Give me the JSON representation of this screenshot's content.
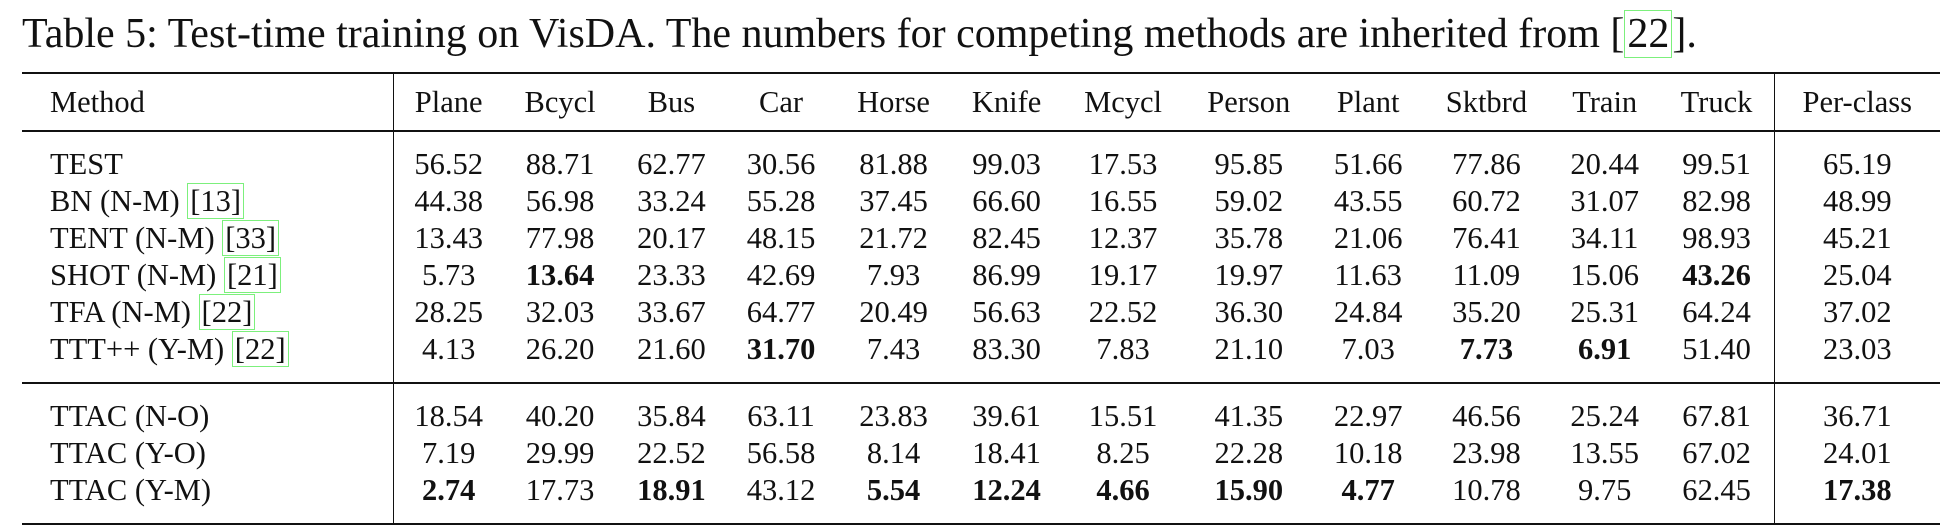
{
  "caption": {
    "text_before": "Table 5: Test-time training on VisDA. The numbers for competing methods are inherited from [",
    "ref": "22",
    "text_after": "]."
  },
  "table": {
    "columns": [
      "Method",
      "Plane",
      "Bcycl",
      "Bus",
      "Car",
      "Horse",
      "Knife",
      "Mcycl",
      "Person",
      "Plant",
      "Sktbrd",
      "Train",
      "Truck",
      "Per-class"
    ],
    "groups": [
      [
        {
          "method": "TEST",
          "cite": "",
          "values": [
            "56.52",
            "88.71",
            "62.77",
            "30.56",
            "81.88",
            "99.03",
            "17.53",
            "95.85",
            "51.66",
            "77.86",
            "20.44",
            "99.51",
            "65.19"
          ],
          "bold": []
        },
        {
          "method": "BN (N-M) ",
          "cite": "[13]",
          "values": [
            "44.38",
            "56.98",
            "33.24",
            "55.28",
            "37.45",
            "66.60",
            "16.55",
            "59.02",
            "43.55",
            "60.72",
            "31.07",
            "82.98",
            "48.99"
          ],
          "bold": []
        },
        {
          "method": "TENT (N-M) ",
          "cite": "[33]",
          "values": [
            "13.43",
            "77.98",
            "20.17",
            "48.15",
            "21.72",
            "82.45",
            "12.37",
            "35.78",
            "21.06",
            "76.41",
            "34.11",
            "98.93",
            "45.21"
          ],
          "bold": []
        },
        {
          "method": "SHOT (N-M) ",
          "cite": "[21]",
          "values": [
            "5.73",
            "13.64",
            "23.33",
            "42.69",
            "7.93",
            "86.99",
            "19.17",
            "19.97",
            "11.63",
            "11.09",
            "15.06",
            "43.26",
            "25.04"
          ],
          "bold": [
            1,
            11
          ]
        },
        {
          "method": "TFA (N-M) ",
          "cite": "[22]",
          "values": [
            "28.25",
            "32.03",
            "33.67",
            "64.77",
            "20.49",
            "56.63",
            "22.52",
            "36.30",
            "24.84",
            "35.20",
            "25.31",
            "64.24",
            "37.02"
          ],
          "bold": []
        },
        {
          "method": "TTT++ (Y-M) ",
          "cite": "[22]",
          "values": [
            "4.13",
            "26.20",
            "21.60",
            "31.70",
            "7.43",
            "83.30",
            "7.83",
            "21.10",
            "7.03",
            "7.73",
            "6.91",
            "51.40",
            "23.03"
          ],
          "bold": [
            3,
            9,
            10
          ]
        }
      ],
      [
        {
          "method": "TTAC (N-O)",
          "cite": "",
          "values": [
            "18.54",
            "40.20",
            "35.84",
            "63.11",
            "23.83",
            "39.61",
            "15.51",
            "41.35",
            "22.97",
            "46.56",
            "25.24",
            "67.81",
            "36.71"
          ],
          "bold": []
        },
        {
          "method": "TTAC (Y-O)",
          "cite": "",
          "values": [
            "7.19",
            "29.99",
            "22.52",
            "56.58",
            "8.14",
            "18.41",
            "8.25",
            "22.28",
            "10.18",
            "23.98",
            "13.55",
            "67.02",
            "24.01"
          ],
          "bold": []
        },
        {
          "method": "TTAC (Y-M)",
          "cite": "",
          "values": [
            "2.74",
            "17.73",
            "18.91",
            "43.12",
            "5.54",
            "12.24",
            "4.66",
            "15.90",
            "4.77",
            "10.78",
            "9.75",
            "62.45",
            "17.38"
          ],
          "bold": [
            0,
            2,
            4,
            5,
            6,
            7,
            8,
            12
          ]
        }
      ]
    ]
  }
}
